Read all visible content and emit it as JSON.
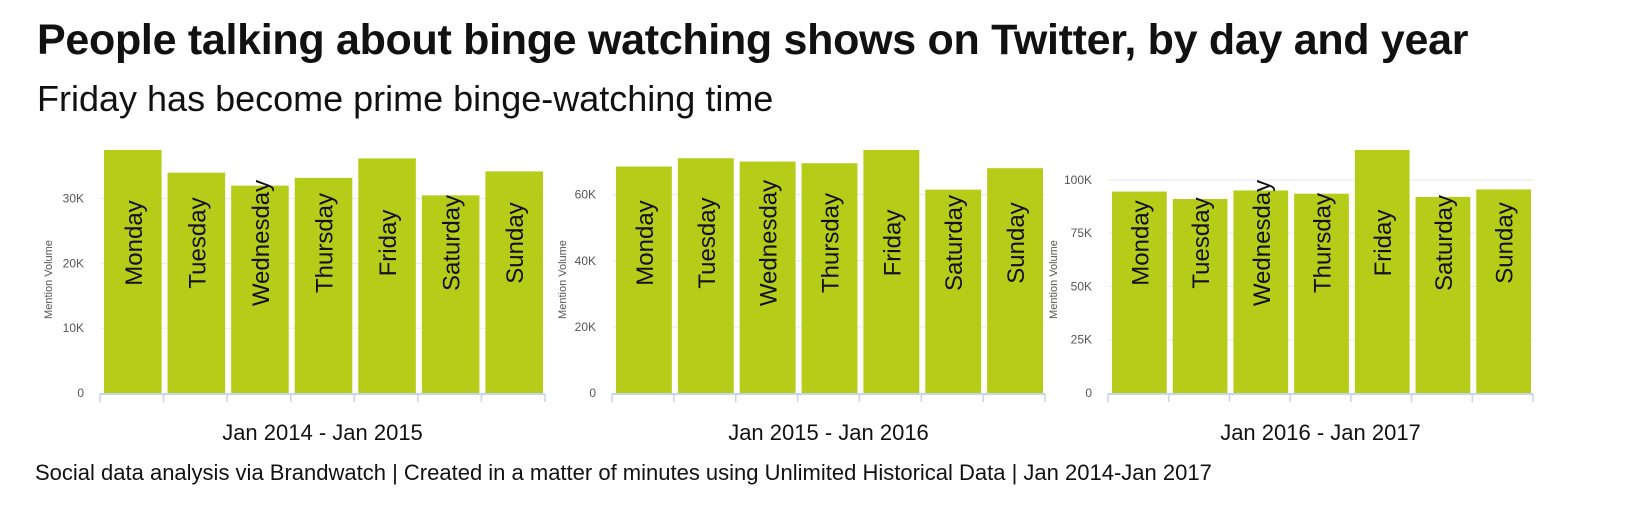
{
  "title": "People talking about binge watching shows on Twitter, by day and year",
  "subtitle": "Friday has become prime binge-watching time",
  "footer": "Social data analysis via Brandwatch | Created in a matter of minutes using Unlimited Historical Data | Jan 2014-Jan 2017",
  "colors": {
    "bar": "#b5cc18",
    "grid": "#e8e8e8",
    "axis": "#c8d4e8",
    "tick_text": "#555555"
  },
  "chart_data": [
    {
      "type": "bar",
      "xlabel": "Jan 2014 - Jan 2015",
      "ylabel": "Mention Volume",
      "categories": [
        "Monday",
        "Tuesday",
        "Wednesday",
        "Thursday",
        "Friday",
        "Saturday",
        "Sunday"
      ],
      "values": [
        37500,
        34000,
        32000,
        33200,
        36200,
        30500,
        34200
      ],
      "ylim": [
        0,
        37500
      ],
      "yticks": [
        0,
        10000,
        20000,
        30000
      ],
      "ytick_labels": [
        "0",
        "10K",
        "20K",
        "30K"
      ],
      "grid": true
    },
    {
      "type": "bar",
      "xlabel": "Jan 2015 - Jan 2016",
      "ylabel": "Mention Volume",
      "categories": [
        "Monday",
        "Tuesday",
        "Wednesday",
        "Thursday",
        "Friday",
        "Saturday",
        "Sunday"
      ],
      "values": [
        68500,
        71000,
        70000,
        69500,
        73500,
        61500,
        68000
      ],
      "ylim": [
        0,
        73500
      ],
      "yticks": [
        0,
        20000,
        40000,
        60000
      ],
      "ytick_labels": [
        "0",
        "20K",
        "40K",
        "60K"
      ],
      "grid": true
    },
    {
      "type": "bar",
      "xlabel": "Jan 2016 - Jan 2017",
      "ylabel": "Mention Volume",
      "categories": [
        "Monday",
        "Tuesday",
        "Wednesday",
        "Thursday",
        "Friday",
        "Saturday",
        "Sunday"
      ],
      "values": [
        94500,
        91000,
        95000,
        93500,
        114000,
        92000,
        95500
      ],
      "ylim": [
        0,
        114000
      ],
      "yticks": [
        0,
        25000,
        50000,
        75000,
        100000
      ],
      "ytick_labels": [
        "0",
        "25K",
        "50K",
        "75K",
        "100K"
      ],
      "grid": true
    }
  ]
}
